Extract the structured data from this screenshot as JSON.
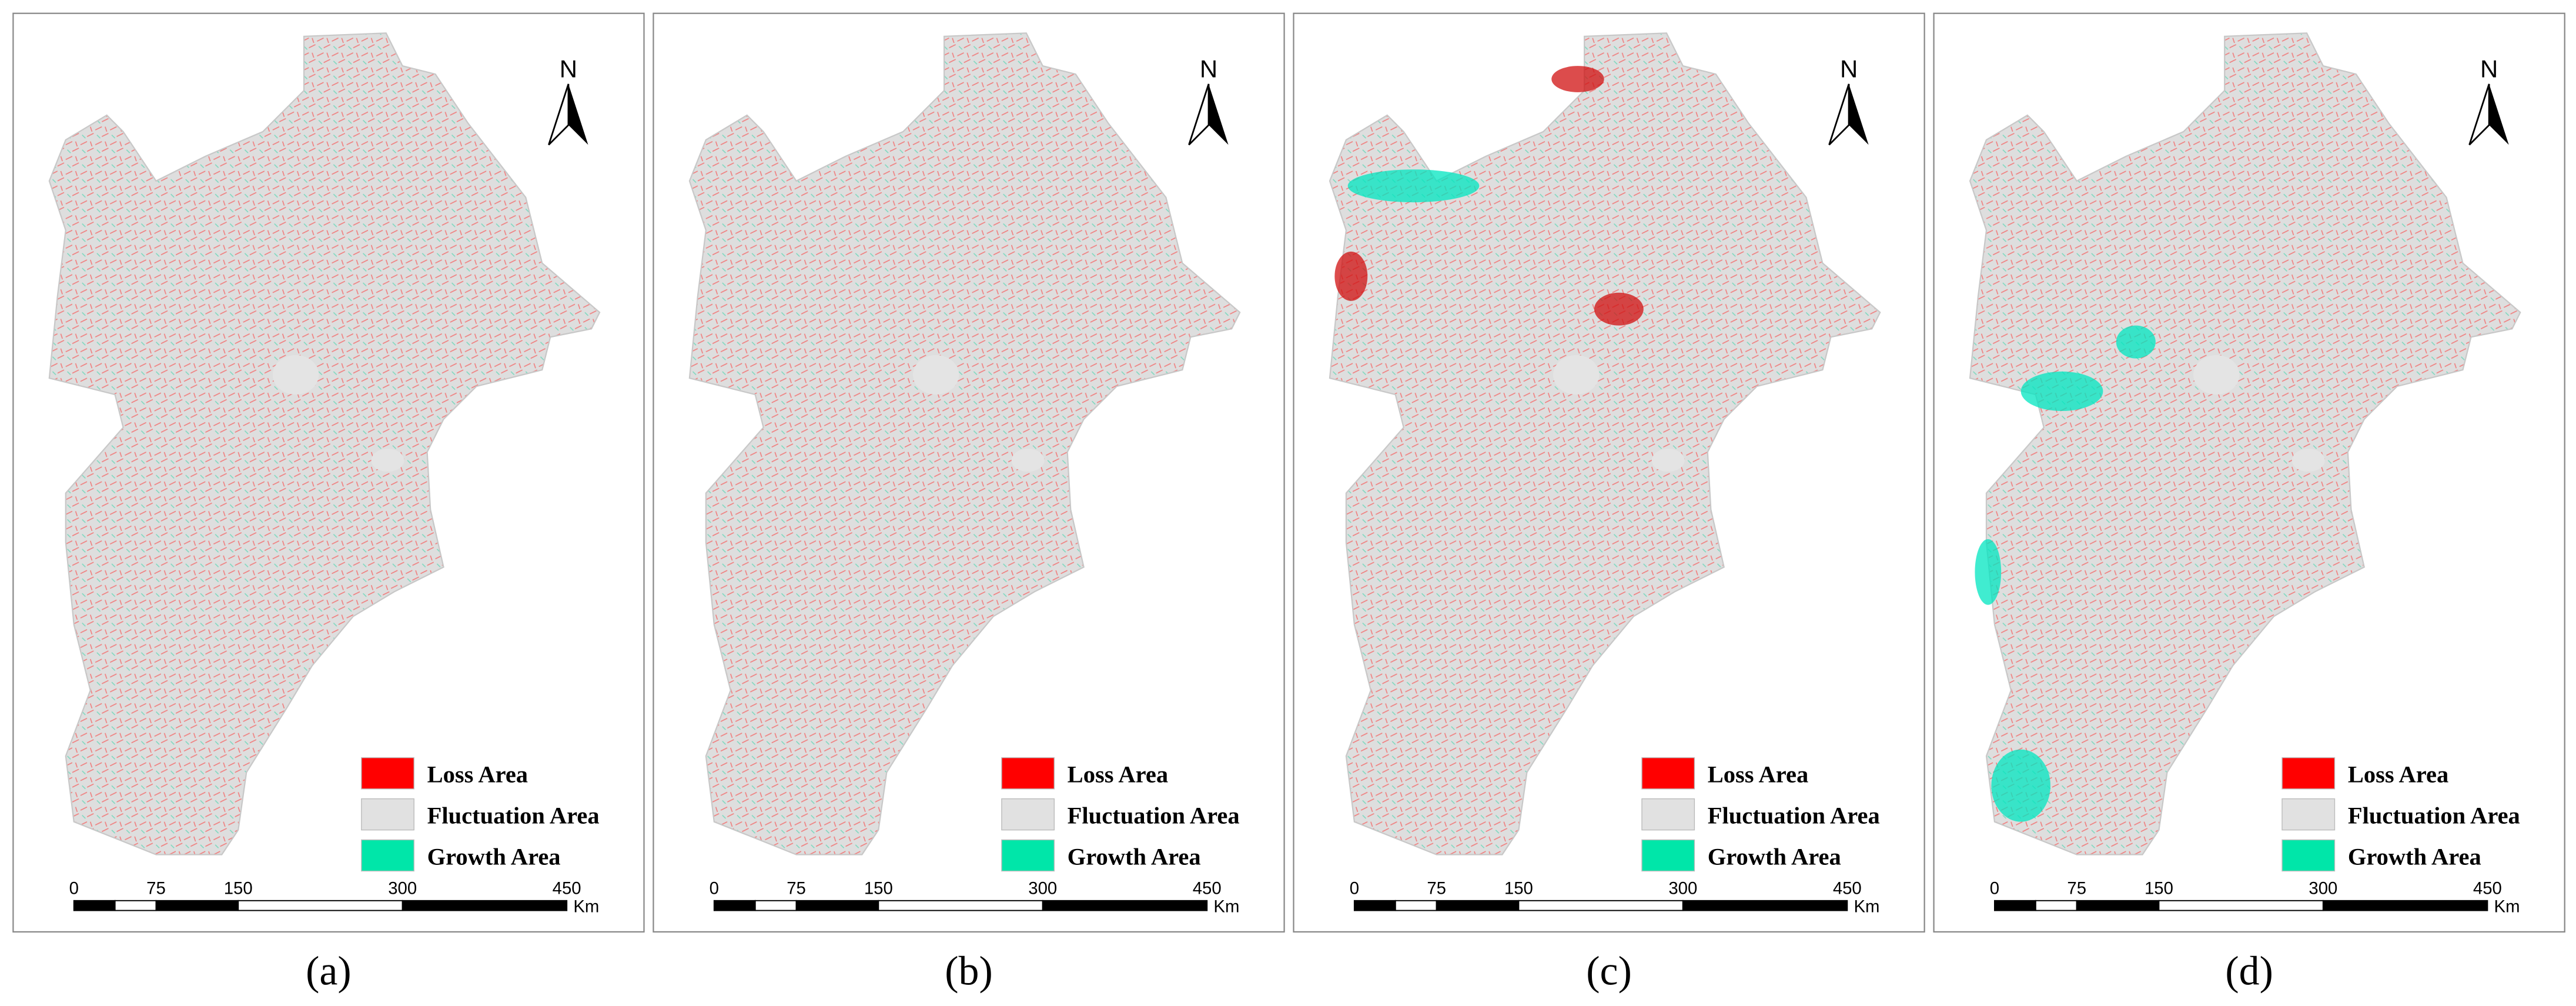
{
  "panels": [
    {
      "label": "(a)",
      "north": "N",
      "legend": [
        {
          "label": "Loss Area",
          "color": "#ff0000"
        },
        {
          "label": "Fluctuation Area",
          "color": "#e1e1e1"
        },
        {
          "label": "Growth Area",
          "color": "#00e6a9"
        }
      ],
      "scale": {
        "ticks": [
          0,
          75,
          150,
          300,
          450
        ],
        "unit": "Km"
      }
    },
    {
      "label": "(b)",
      "north": "N",
      "legend": [
        {
          "label": "Loss Area",
          "color": "#ff0000"
        },
        {
          "label": "Fluctuation Area",
          "color": "#e1e1e1"
        },
        {
          "label": "Growth Area",
          "color": "#00e6a9"
        }
      ],
      "scale": {
        "ticks": [
          0,
          75,
          150,
          300,
          450
        ],
        "unit": "Km"
      }
    },
    {
      "label": "(c)",
      "north": "N",
      "legend": [
        {
          "label": "Loss Area",
          "color": "#ff0000"
        },
        {
          "label": "Fluctuation Area",
          "color": "#e1e1e1"
        },
        {
          "label": "Growth Area",
          "color": "#00e6a9"
        }
      ],
      "scale": {
        "ticks": [
          0,
          75,
          150,
          300,
          450
        ],
        "unit": "Km"
      }
    },
    {
      "label": "(d)",
      "north": "N",
      "legend": [
        {
          "label": "Loss Area",
          "color": "#ff0000"
        },
        {
          "label": "Fluctuation Area",
          "color": "#e1e1e1"
        },
        {
          "label": "Growth Area",
          "color": "#00e6a9"
        }
      ],
      "scale": {
        "ticks": [
          0,
          75,
          150,
          300,
          450
        ],
        "unit": "Km"
      }
    }
  ]
}
